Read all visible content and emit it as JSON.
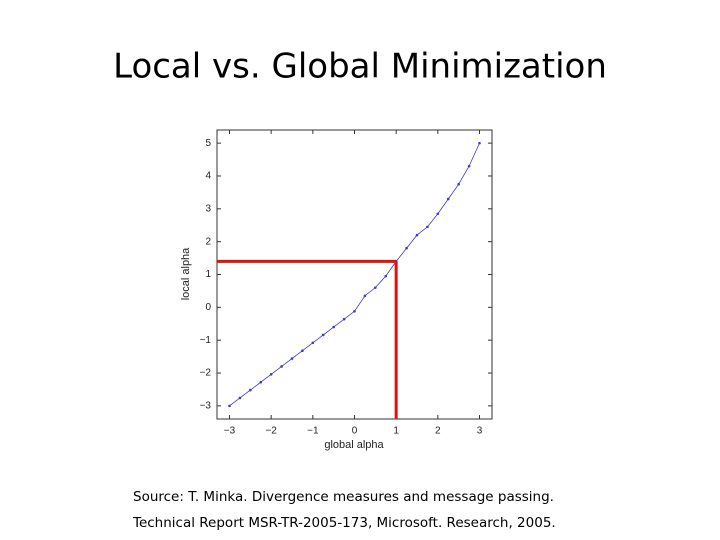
{
  "title": "Local vs. Global Minimization",
  "source": [
    "Source: T. Minka. Divergence measures and message passing.",
    "Technical Report MSR-TR-2005-173, Microsoft. Research, 2005."
  ],
  "chart_data": {
    "type": "line",
    "xlabel": "global alpha",
    "ylabel": "local alpha",
    "x": [
      -3,
      -2.75,
      -2.5,
      -2.25,
      -2,
      -1.75,
      -1.5,
      -1.25,
      -1,
      -0.75,
      -0.5,
      -0.25,
      0,
      0.25,
      0.5,
      0.75,
      1,
      1.25,
      1.5,
      1.75,
      2,
      2.25,
      2.5,
      2.75,
      3
    ],
    "series": [
      {
        "color": "#3a3ad0",
        "values": [
          -3,
          -2.76,
          -2.52,
          -2.28,
          -2.04,
          -1.8,
          -1.56,
          -1.32,
          -1.08,
          -0.84,
          -0.6,
          -0.36,
          -0.12,
          0.35,
          0.6,
          0.95,
          1.4,
          1.8,
          2.2,
          2.45,
          2.85,
          3.3,
          3.75,
          4.3,
          5
        ]
      }
    ],
    "highlight": {
      "x": 1,
      "y": 1.4,
      "color": "#dd1111"
    },
    "xlim": [
      -3.3,
      3.3
    ],
    "ylim": [
      -3.4,
      5.4
    ],
    "xticks": [
      {
        "value": -3,
        "label": "−3"
      },
      {
        "value": -2,
        "label": "−2"
      },
      {
        "value": -1,
        "label": "−1"
      },
      0,
      1,
      2,
      3
    ],
    "yticks": [
      {
        "value": -3,
        "label": "−3"
      },
      {
        "value": -2,
        "label": "−2"
      },
      {
        "value": -1,
        "label": "−1"
      },
      0,
      1,
      2,
      3,
      4,
      5
    ]
  }
}
